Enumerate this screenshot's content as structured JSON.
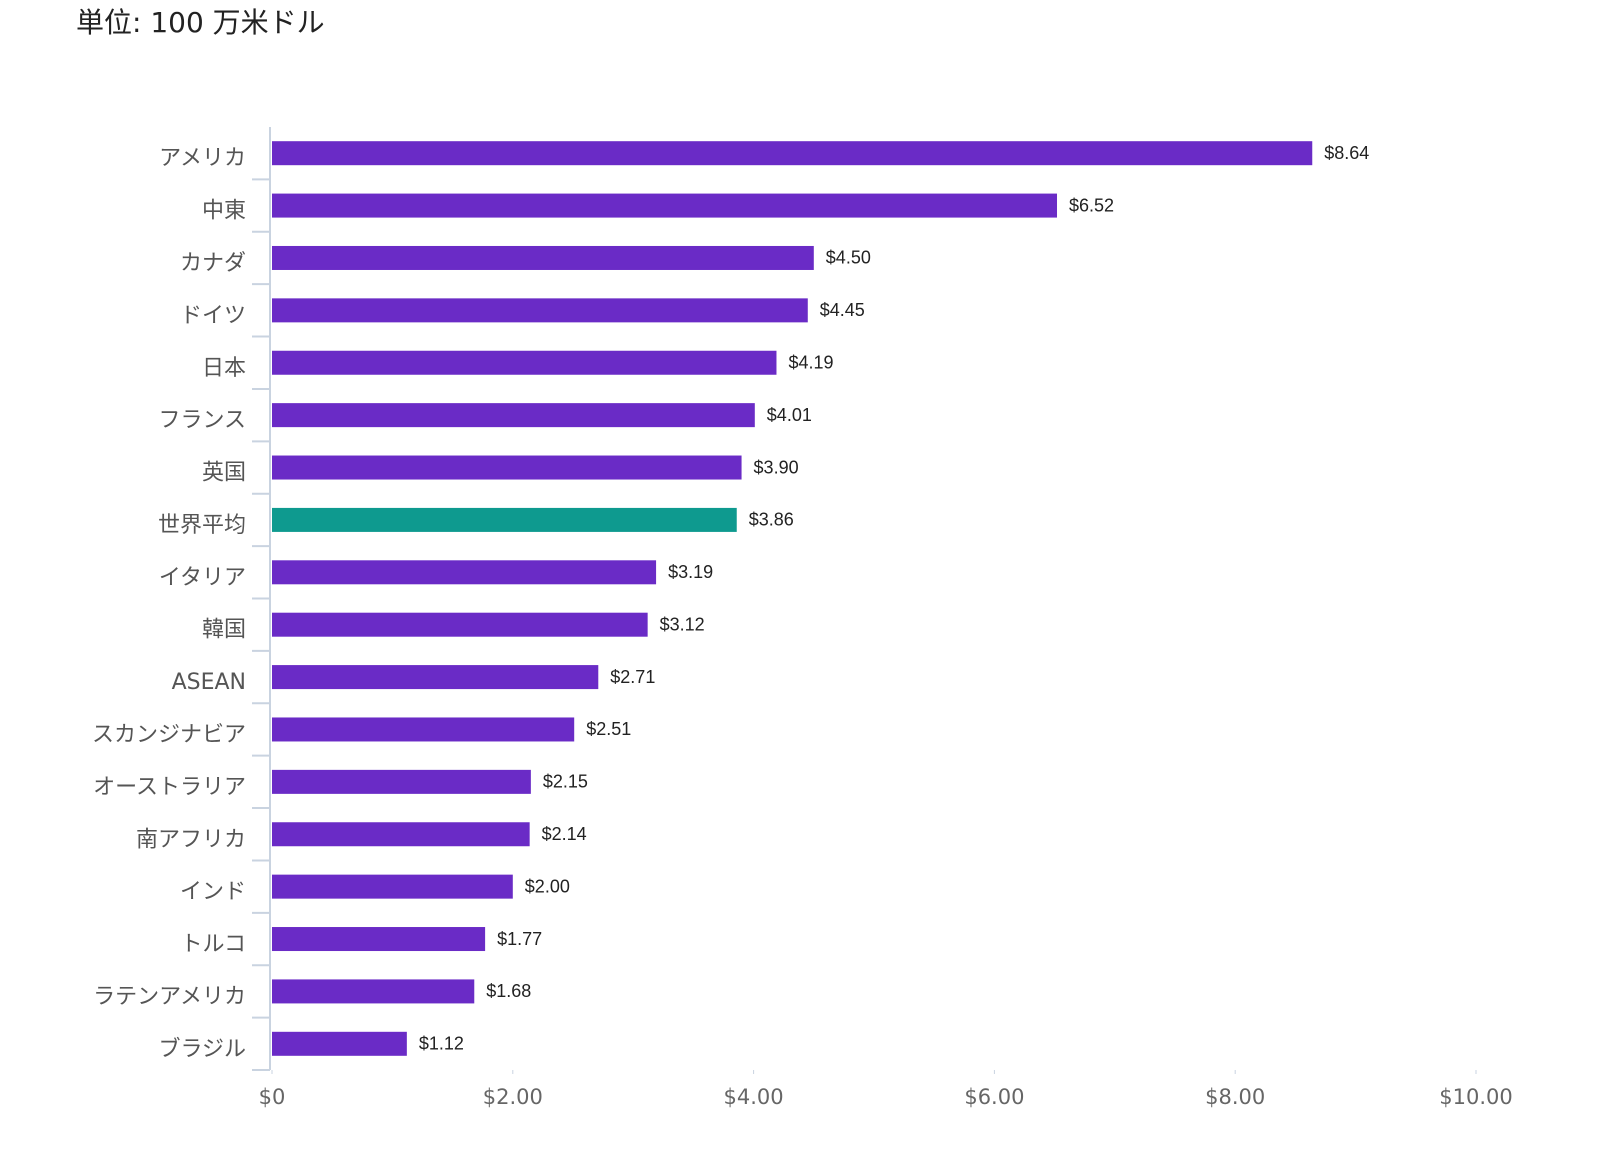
{
  "chart_data": {
    "type": "hbar",
    "title": "単位: 100  万米ドル",
    "categories": [
      "アメリカ",
      "中東",
      "カナダ",
      "ドイツ",
      "日本",
      "フランス",
      "英国",
      "世界平均",
      "イタリア",
      "韓国",
      "ASEAN",
      "スカンジナビア",
      "オーストラリア",
      "南アフリカ",
      "インド",
      "トルコ",
      "ラテンアメリカ",
      "ブラジル"
    ],
    "values": [
      8.64,
      6.52,
      4.5,
      4.45,
      4.19,
      4.01,
      3.9,
      3.86,
      3.19,
      3.12,
      2.71,
      2.51,
      2.15,
      2.14,
      2.0,
      1.77,
      1.68,
      1.12
    ],
    "value_labels": [
      "$8.64",
      "$6.52",
      "$4.50",
      "$4.45",
      "$4.19",
      "$4.01",
      "$3.90",
      "$3.86",
      "$3.19",
      "$3.12",
      "$2.71",
      "$2.51",
      "$2.15",
      "$2.14",
      "$2.00",
      "$1.77",
      "$1.68",
      "$1.12"
    ],
    "colors": [
      "#6a2bc6",
      "#6a2bc6",
      "#6a2bc6",
      "#6a2bc6",
      "#6a2bc6",
      "#6a2bc6",
      "#6a2bc6",
      "#0e9a8f",
      "#6a2bc6",
      "#6a2bc6",
      "#6a2bc6",
      "#6a2bc6",
      "#6a2bc6",
      "#6a2bc6",
      "#6a2bc6",
      "#6a2bc6",
      "#6a2bc6",
      "#6a2bc6"
    ],
    "xlim": [
      0,
      10
    ],
    "xticks": [
      {
        "value": 0,
        "label": "$0"
      },
      {
        "value": 2,
        "label": "$2.00"
      },
      {
        "value": 4,
        "label": "$4.00"
      },
      {
        "value": 6,
        "label": "$6.00"
      },
      {
        "value": 8,
        "label": "$8.00"
      },
      {
        "value": 10,
        "label": "$10.00"
      }
    ]
  }
}
